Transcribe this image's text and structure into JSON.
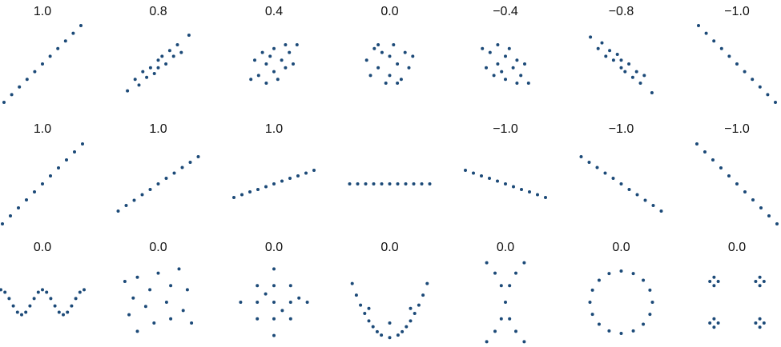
{
  "chart_data": [
    {
      "type": "scatter",
      "title": "1.0",
      "color": "#1c4a78",
      "x": [
        -1,
        -0.8,
        -0.6,
        -0.4,
        -0.2,
        0,
        0.2,
        0.4,
        0.6,
        0.8,
        1
      ],
      "values": [
        -1,
        -0.8,
        -0.6,
        -0.4,
        -0.2,
        0,
        0.2,
        0.4,
        0.6,
        0.8,
        1
      ]
    },
    {
      "type": "scatter",
      "title": "0.8",
      "color": "#1c4a78",
      "x": [
        -0.8,
        -0.6,
        -0.5,
        -0.4,
        -0.3,
        -0.2,
        -0.1,
        0,
        0,
        0.1,
        0.2,
        0.3,
        0.4,
        0.5,
        0.6,
        0.8
      ],
      "values": [
        -0.7,
        -0.4,
        -0.55,
        -0.2,
        -0.35,
        -0.1,
        -0.25,
        0.1,
        -0.1,
        0.2,
        0,
        0.35,
        0.2,
        0.5,
        0.3,
        0.75
      ]
    },
    {
      "type": "scatter",
      "title": "0.4",
      "color": "#1c4a78",
      "x": [
        -0.6,
        -0.5,
        -0.4,
        -0.3,
        -0.2,
        -0.2,
        -0.1,
        0,
        0,
        0.1,
        0.2,
        0.3,
        0.3,
        0.4,
        0.5,
        0.6
      ],
      "values": [
        -0.4,
        0.1,
        -0.3,
        0.3,
        -0.5,
        0,
        0.2,
        -0.2,
        0.4,
        -0.4,
        0.1,
        0.5,
        -0.1,
        0.3,
        0,
        0.5
      ]
    },
    {
      "type": "scatter",
      "title": "0.0",
      "color": "#1c4a78",
      "x": [
        -0.6,
        -0.5,
        -0.4,
        -0.3,
        -0.2,
        -0.1,
        0,
        0,
        0.1,
        0.2,
        0.3,
        0.4,
        0.5,
        0.6,
        -0.3,
        0.2
      ],
      "values": [
        0.1,
        -0.3,
        0.4,
        -0.1,
        0.3,
        -0.5,
        0.2,
        -0.3,
        0.5,
        0,
        -0.4,
        0.3,
        -0.1,
        0.2,
        0.5,
        -0.5
      ]
    },
    {
      "type": "scatter",
      "title": "−0.4",
      "color": "#1c4a78",
      "x": [
        -0.6,
        -0.5,
        -0.4,
        -0.3,
        -0.2,
        -0.2,
        -0.1,
        0,
        0,
        0.1,
        0.2,
        0.3,
        0.3,
        0.4,
        0.5,
        0.6
      ],
      "values": [
        0.4,
        -0.1,
        0.3,
        -0.3,
        0.5,
        0,
        -0.2,
        0.2,
        -0.4,
        0.4,
        -0.1,
        -0.5,
        0.1,
        -0.3,
        0,
        -0.5
      ]
    },
    {
      "type": "scatter",
      "title": "−0.8",
      "color": "#1c4a78",
      "x": [
        -0.8,
        -0.6,
        -0.5,
        -0.4,
        -0.3,
        -0.2,
        -0.1,
        0,
        0,
        0.1,
        0.2,
        0.3,
        0.4,
        0.5,
        0.6,
        0.8
      ],
      "values": [
        0.7,
        0.4,
        0.55,
        0.2,
        0.35,
        0.1,
        0.25,
        -0.1,
        0.1,
        -0.2,
        0,
        -0.35,
        -0.2,
        -0.5,
        -0.3,
        -0.75
      ]
    },
    {
      "type": "scatter",
      "title": "−1.0",
      "color": "#1c4a78",
      "x": [
        -1,
        -0.8,
        -0.6,
        -0.4,
        -0.2,
        0,
        0.2,
        0.4,
        0.6,
        0.8,
        1
      ],
      "values": [
        1,
        0.8,
        0.6,
        0.4,
        0.2,
        0,
        -0.2,
        -0.4,
        -0.6,
        -0.8,
        -1
      ]
    },
    {
      "type": "scatter",
      "title": "1.0",
      "color": "#1c4a78",
      "x": [
        -1,
        -0.8,
        -0.6,
        -0.4,
        -0.2,
        0,
        0.2,
        0.4,
        0.6,
        0.8,
        1
      ],
      "values": [
        -1,
        -0.8,
        -0.6,
        -0.4,
        -0.2,
        0,
        0.2,
        0.4,
        0.6,
        0.8,
        1
      ]
    },
    {
      "type": "scatter",
      "title": "1.0",
      "color": "#1c4a78",
      "x": [
        -1,
        -0.8,
        -0.6,
        -0.4,
        -0.2,
        0,
        0.2,
        0.4,
        0.6,
        0.8,
        1
      ],
      "values": [
        -0.68,
        -0.54,
        -0.41,
        -0.27,
        -0.14,
        0,
        0.14,
        0.27,
        0.41,
        0.54,
        0.68
      ]
    },
    {
      "type": "scatter",
      "title": "1.0",
      "color": "#1c4a78",
      "x": [
        -1,
        -0.8,
        -0.6,
        -0.4,
        -0.2,
        0,
        0.2,
        0.4,
        0.6,
        0.8,
        1
      ],
      "values": [
        -0.34,
        -0.27,
        -0.2,
        -0.14,
        -0.07,
        0,
        0.07,
        0.14,
        0.2,
        0.27,
        0.34
      ]
    },
    {
      "type": "scatter",
      "color": "#1c4a78",
      "x": [
        -1,
        -0.8,
        -0.6,
        -0.4,
        -0.2,
        0,
        0.2,
        0.4,
        0.6,
        0.8,
        1
      ],
      "values": [
        0,
        0,
        0,
        0,
        0,
        0,
        0,
        0,
        0,
        0,
        0
      ]
    },
    {
      "type": "scatter",
      "title": "−1.0",
      "color": "#1c4a78",
      "x": [
        -1,
        -0.8,
        -0.6,
        -0.4,
        -0.2,
        0,
        0.2,
        0.4,
        0.6,
        0.8,
        1
      ],
      "values": [
        0.34,
        0.27,
        0.2,
        0.14,
        0.07,
        0,
        -0.07,
        -0.14,
        -0.2,
        -0.27,
        -0.34
      ]
    },
    {
      "type": "scatter",
      "title": "−1.0",
      "color": "#1c4a78",
      "x": [
        -1,
        -0.8,
        -0.6,
        -0.4,
        -0.2,
        0,
        0.2,
        0.4,
        0.6,
        0.8,
        1
      ],
      "values": [
        0.68,
        0.54,
        0.41,
        0.27,
        0.14,
        0,
        -0.14,
        -0.27,
        -0.41,
        -0.54,
        -0.68
      ]
    },
    {
      "type": "scatter",
      "title": "−1.0",
      "color": "#1c4a78",
      "x": [
        -1,
        -0.8,
        -0.6,
        -0.4,
        -0.2,
        0,
        0.2,
        0.4,
        0.6,
        0.8,
        1
      ],
      "values": [
        1,
        0.8,
        0.6,
        0.4,
        0.2,
        0,
        -0.2,
        -0.4,
        -0.6,
        -0.8,
        -1
      ]
    },
    {
      "type": "scatter",
      "title": "0.0",
      "color": "#1c4a78",
      "x": [
        -1,
        -0.9,
        -0.8,
        -0.7,
        -0.6,
        -0.5,
        -0.4,
        -0.3,
        -0.2,
        -0.1,
        0,
        0.1,
        0.2,
        0.3,
        0.4,
        0.5,
        0.6,
        0.7,
        0.8,
        0.9,
        1
      ],
      "values": [
        0.3,
        0.24,
        0.09,
        -0.09,
        -0.24,
        -0.3,
        -0.24,
        -0.09,
        0.09,
        0.24,
        0.3,
        0.24,
        0.09,
        -0.09,
        -0.24,
        -0.3,
        -0.24,
        -0.09,
        0.09,
        0.24,
        0.3
      ]
    },
    {
      "type": "scatter",
      "title": "0.0",
      "color": "#1c4a78",
      "x": [
        -0.8,
        -0.5,
        0,
        0.5,
        -0.6,
        -0.2,
        0.3,
        0.7,
        -0.7,
        -0.3,
        0.2,
        0.6,
        -0.5,
        -0.1,
        0.3,
        0.8
      ],
      "values": [
        0.5,
        0.6,
        0.7,
        0.8,
        0.1,
        0.3,
        0.4,
        0.3,
        -0.3,
        -0.1,
        0,
        -0.2,
        -0.7,
        -0.5,
        -0.4,
        -0.5
      ]
    },
    {
      "type": "scatter",
      "title": "0.0",
      "color": "#1c4a78",
      "x": [
        0,
        -0.4,
        0,
        0.4,
        -0.8,
        -0.4,
        0,
        0.4,
        0.8,
        -0.4,
        0,
        0.4,
        0,
        -0.2,
        0.2,
        0.6
      ],
      "values": [
        0.8,
        0.4,
        0.4,
        0.4,
        0,
        0,
        0,
        0,
        0,
        -0.4,
        -0.4,
        -0.4,
        -0.8,
        0.2,
        -0.2,
        0.1
      ]
    },
    {
      "type": "scatter",
      "title": "0.0",
      "color": "#1c4a78",
      "x": [
        -0.9,
        -0.8,
        -0.7,
        -0.6,
        -0.5,
        -0.4,
        -0.3,
        -0.2,
        0,
        0.2,
        0.3,
        0.4,
        0.5,
        0.6,
        0.7,
        0.8,
        0.9,
        -0.5,
        0.5,
        0
      ],
      "values": [
        0.45,
        0.17,
        -0.07,
        -0.27,
        -0.45,
        -0.59,
        -0.71,
        -0.79,
        -0.85,
        -0.79,
        -0.71,
        -0.59,
        -0.45,
        -0.27,
        -0.07,
        0.17,
        0.45,
        -0.15,
        -0.15,
        -0.5
      ]
    },
    {
      "type": "scatter",
      "title": "0.0",
      "color": "#1c4a78",
      "x": [
        -0.45,
        -0.25,
        -0.1,
        0,
        0.1,
        0.25,
        0.45,
        0.45,
        0.25,
        0.1,
        -0.1,
        -0.25,
        -0.45
      ],
      "values": [
        -0.95,
        -0.7,
        -0.4,
        0,
        0.4,
        0.7,
        0.95,
        -0.95,
        -0.7,
        -0.4,
        0.4,
        0.7,
        0.95
      ]
    },
    {
      "type": "scatter",
      "title": "0.0",
      "color": "#1c4a78",
      "x": [
        0.75,
        0.69,
        0.53,
        0.29,
        0,
        -0.29,
        -0.53,
        -0.69,
        -0.75,
        -0.69,
        -0.53,
        -0.29,
        0,
        0.29,
        0.53,
        0.69
      ],
      "values": [
        0,
        0.29,
        0.53,
        0.69,
        0.75,
        0.69,
        0.53,
        0.29,
        0,
        -0.29,
        -0.53,
        -0.69,
        -0.75,
        -0.69,
        -0.53,
        -0.29
      ]
    },
    {
      "type": "scatter",
      "title": "0.0",
      "color": "#1c4a78",
      "x": [
        -0.65,
        -0.45,
        -0.55,
        -0.55,
        0.45,
        0.65,
        0.55,
        0.55,
        -0.65,
        -0.45,
        -0.55,
        -0.55,
        0.45,
        0.65,
        0.55,
        0.55
      ],
      "values": [
        0.5,
        0.5,
        0.6,
        0.4,
        0.5,
        0.5,
        0.6,
        0.4,
        -0.5,
        -0.5,
        -0.4,
        -0.6,
        -0.5,
        -0.5,
        -0.4,
        -0.6
      ]
    }
  ]
}
